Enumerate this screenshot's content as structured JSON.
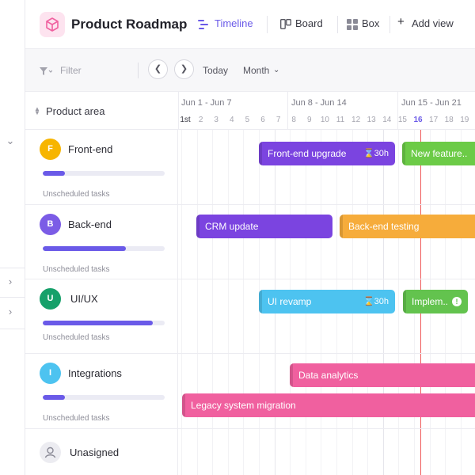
{
  "header": {
    "title": "Product Roadmap",
    "views": [
      {
        "label": "Timeline",
        "icon": "timeline-icon",
        "active": true
      },
      {
        "label": "Board",
        "icon": "board-icon",
        "active": false
      },
      {
        "label": "Box",
        "icon": "box-icon",
        "active": false
      }
    ],
    "add_view": "Add view"
  },
  "toolbar": {
    "filter_placeholder": "Filter",
    "today": "Today",
    "scale": "Month"
  },
  "timeline": {
    "column_header": "Product area",
    "weeks": [
      "Jun 1 - Jun 7",
      "Jun 8 - Jun 14",
      "Jun 15 - Jun 21"
    ],
    "days": [
      "1st",
      "2",
      "3",
      "4",
      "5",
      "6",
      "7",
      "8",
      "9",
      "10",
      "11",
      "12",
      "13",
      "14",
      "15",
      "16",
      "17",
      "18",
      "19"
    ],
    "today": "16"
  },
  "rows": [
    {
      "name": "Front-end",
      "initial": "F",
      "color": "#f7b500",
      "progress": 0.18,
      "unscheduled": "Unscheduled tasks"
    },
    {
      "name": "Back-end",
      "initial": "B",
      "color": "#7b5ce6",
      "progress": 0.68,
      "unscheduled": "Unscheduled tasks"
    },
    {
      "name": "UI/UX",
      "initial": "U",
      "color": "#16a06a",
      "progress": 0.9,
      "unscheduled": "Unscheduled tasks"
    },
    {
      "name": "Integrations",
      "initial": "I",
      "color": "#4dc3f0",
      "progress": 0.18,
      "unscheduled": "Unscheduled tasks"
    },
    {
      "name": "Unasigned",
      "initial": "",
      "color": "#e9e9ee",
      "progress": null,
      "unscheduled": ""
    }
  ],
  "tasks": [
    {
      "label": "Front-end upgrade",
      "estimate": "30h",
      "color": "#7b44e0"
    },
    {
      "label": "New feature..",
      "estimate": "",
      "color": "#6ccb47"
    },
    {
      "label": "CRM update",
      "estimate": "",
      "color": "#7b44e0"
    },
    {
      "label": "Back-end testing",
      "estimate": "",
      "color": "#f6ac3b"
    },
    {
      "label": "UI revamp",
      "estimate": "30h",
      "color": "#4dc3f0"
    },
    {
      "label": "Implem..",
      "estimate": "",
      "color": "#63c34e"
    },
    {
      "label": "Data analytics",
      "estimate": "",
      "color": "#f0609f"
    },
    {
      "label": "Legacy system migration",
      "estimate": "",
      "color": "#f0609f"
    }
  ],
  "colors": {
    "accent": "#6a5ae8",
    "today_line": "#f05a5a"
  }
}
